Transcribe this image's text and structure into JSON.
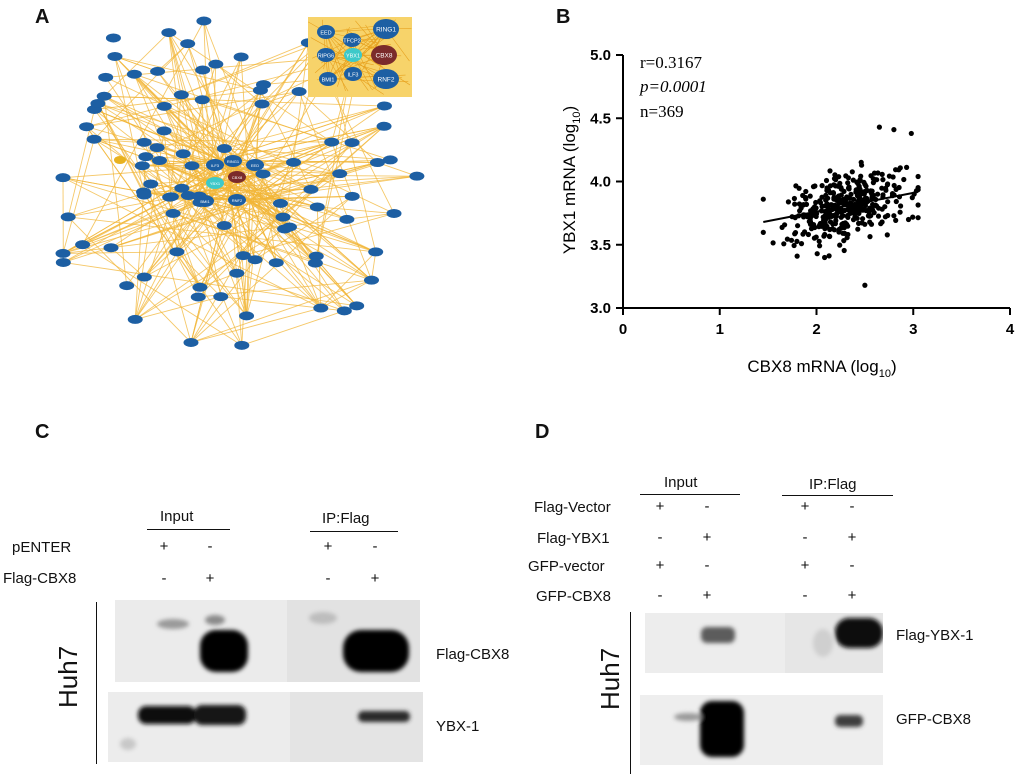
{
  "panels": {
    "a": "A",
    "b": "B",
    "c": "C",
    "d": "D"
  },
  "network": {
    "inset_nodes": [
      "EED",
      "TFCP2",
      "RING1",
      "RIPG6",
      "YBX1",
      "CBX8",
      "BMI1",
      "ILF3",
      "RNF2"
    ],
    "center_nodes": [
      "CBX8",
      "YBX1",
      "RNF2",
      "RING1",
      "BMI1",
      "ILF3",
      "EED"
    ],
    "colors": {
      "node": "#1d5fa3",
      "edge": "#f2b637",
      "cbx8": "#7b2b2b",
      "ybx1": "#3ec9c9",
      "yellow_node": "#e8b21f"
    }
  },
  "chart_data": {
    "type": "scatter",
    "title": "",
    "xlabel": "CBX8 mRNA (log",
    "xlabel_sub": "10",
    "xlabel_end": ")",
    "ylabel": "YBX1 mRNA (log",
    "ylabel_sub": "10",
    "ylabel_end": ")",
    "xlim": [
      0,
      4
    ],
    "ylim": [
      3.0,
      5.0
    ],
    "xticks": [
      "0",
      "1",
      "2",
      "3",
      "4"
    ],
    "yticks": [
      "3.0",
      "3.5",
      "4.0",
      "4.5",
      "5.0"
    ],
    "annotations": {
      "r": "r=0.3167",
      "p": "p=0.0001",
      "n": "n=369"
    },
    "fit_line": {
      "x": [
        1.45,
        3.0
      ],
      "y": [
        3.68,
        3.91
      ]
    },
    "point_cloud": {
      "n": 369,
      "x_mean": 2.3,
      "x_sd": 0.3,
      "x_min": 1.45,
      "x_max": 3.05,
      "y_mean": 3.8,
      "y_sd": 0.13,
      "y_min": 3.18,
      "y_max": 4.43,
      "seed": 7
    },
    "outliers": [
      {
        "x": 2.5,
        "y": 3.18
      },
      {
        "x": 2.65,
        "y": 4.43
      },
      {
        "x": 2.98,
        "y": 4.38
      },
      {
        "x": 2.8,
        "y": 4.41
      },
      {
        "x": 1.45,
        "y": 3.86
      },
      {
        "x": 1.8,
        "y": 3.41
      }
    ]
  },
  "panel_c": {
    "header_input": "Input",
    "header_ip": "IP:Flag",
    "rows": [
      {
        "label": "pENTER",
        "signs": [
          "+",
          "-",
          "+",
          "-"
        ]
      },
      {
        "label": "Flag-CBX8",
        "signs": [
          "-",
          "+",
          "-",
          "+"
        ]
      }
    ],
    "cell_line": "Huh7",
    "blots": [
      "Flag-CBX8",
      "YBX-1"
    ]
  },
  "panel_d": {
    "header_input": "Input",
    "header_ip": "IP:Flag",
    "rows": [
      {
        "label": "Flag-Vector",
        "signs": [
          "+",
          "-",
          "+",
          "-"
        ]
      },
      {
        "label": "Flag-YBX1",
        "signs": [
          "-",
          "+",
          "-",
          "+"
        ]
      },
      {
        "label": "GFP-vector",
        "signs": [
          "+",
          "-",
          "+",
          "-"
        ]
      },
      {
        "label": "GFP-CBX8",
        "signs": [
          "-",
          "+",
          "-",
          "+"
        ]
      }
    ],
    "cell_line": "Huh7",
    "blots": [
      "Flag-YBX-1",
      "GFP-CBX8"
    ]
  }
}
